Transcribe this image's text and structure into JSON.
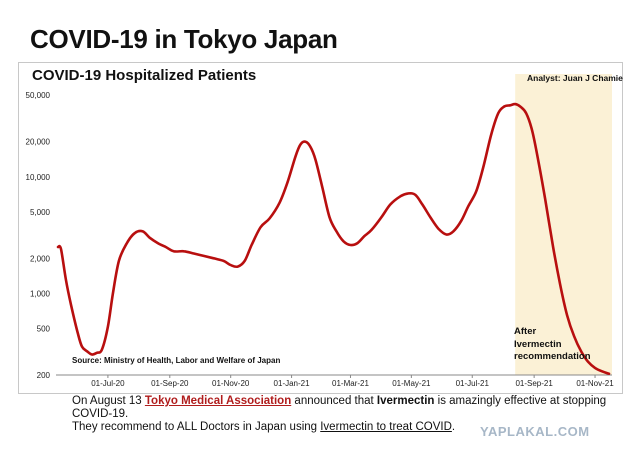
{
  "title": "COVID-19 in Tokyo Japan",
  "chart_data": {
    "type": "line",
    "title": "COVID-19 Hospitalized Patients",
    "analyst": "Analyst: Juan J Chamie",
    "source": "Source: Ministry of Health, Labor and Welfare of Japan",
    "y_scale": "log",
    "ylim": [
      200,
      60000
    ],
    "y_ticks": [
      200,
      500,
      1000,
      2000,
      5000,
      10000,
      20000,
      50000
    ],
    "y_tick_labels": [
      "200",
      "500",
      "1,000",
      "2,000",
      "5,000",
      "10,000",
      "20,000",
      "50,000"
    ],
    "x_ticks": [
      "2020-07-01",
      "2020-09-01",
      "2020-11-01",
      "2021-01-01",
      "2021-03-01",
      "2021-05-01",
      "2021-07-01",
      "2021-09-01",
      "2021-11-01"
    ],
    "x_tick_labels": [
      "01-Jul-20",
      "01-Sep-20",
      "01-Nov-20",
      "01-Jan-21",
      "01-Mar-21",
      "01-May-21",
      "01-Jul-21",
      "01-Sep-21",
      "01-Nov-21"
    ],
    "xlim": [
      "2020-05-10",
      "2021-11-18"
    ],
    "highlight": {
      "from": "2021-08-13",
      "to": "2021-11-18",
      "color": "#fbf1d6"
    },
    "annotation": [
      "After",
      "Ivermectin",
      "recommendation"
    ],
    "line_color": "#b80f0f",
    "series": [
      {
        "x": [
          "2020-05-12",
          "2020-05-15",
          "2020-05-20",
          "2020-05-25",
          "2020-06-01",
          "2020-06-05",
          "2020-06-10",
          "2020-06-15",
          "2020-06-20",
          "2020-06-25",
          "2020-07-01",
          "2020-07-06",
          "2020-07-12",
          "2020-07-20",
          "2020-07-28",
          "2020-08-05",
          "2020-08-12",
          "2020-08-20",
          "2020-08-28",
          "2020-09-05",
          "2020-09-15",
          "2020-09-25",
          "2020-10-05",
          "2020-10-15",
          "2020-10-25",
          "2020-11-01",
          "2020-11-08",
          "2020-11-15",
          "2020-11-22",
          "2020-12-01",
          "2020-12-10",
          "2020-12-20",
          "2020-12-28",
          "2021-01-05",
          "2021-01-10",
          "2021-01-15",
          "2021-01-20",
          "2021-01-25",
          "2021-02-01",
          "2021-02-08",
          "2021-02-15",
          "2021-02-22",
          "2021-03-01",
          "2021-03-08",
          "2021-03-15",
          "2021-03-22",
          "2021-04-01",
          "2021-04-10",
          "2021-04-20",
          "2021-04-28",
          "2021-05-05",
          "2021-05-12",
          "2021-05-20",
          "2021-05-28",
          "2021-06-05",
          "2021-06-12",
          "2021-06-20",
          "2021-06-27",
          "2021-07-05",
          "2021-07-12",
          "2021-07-20",
          "2021-07-27",
          "2021-08-02",
          "2021-08-08",
          "2021-08-13",
          "2021-08-18",
          "2021-08-24",
          "2021-08-30",
          "2021-09-05",
          "2021-09-12",
          "2021-09-20",
          "2021-09-27",
          "2021-10-04",
          "2021-10-11",
          "2021-10-18",
          "2021-10-25",
          "2021-11-01",
          "2021-11-08",
          "2021-11-15"
        ],
        "y": [
          2500,
          2400,
          1300,
          800,
          450,
          350,
          320,
          300,
          310,
          330,
          520,
          1000,
          1900,
          2700,
          3300,
          3400,
          3000,
          2700,
          2500,
          2300,
          2300,
          2200,
          2100,
          2000,
          1900,
          1750,
          1700,
          1900,
          2600,
          3700,
          4400,
          6000,
          9000,
          15000,
          19000,
          20000,
          18000,
          14000,
          8000,
          4500,
          3400,
          2800,
          2600,
          2700,
          3100,
          3500,
          4500,
          5800,
          6800,
          7200,
          7000,
          5800,
          4500,
          3600,
          3200,
          3400,
          4200,
          5600,
          7500,
          12000,
          23000,
          35000,
          40000,
          41000,
          42000,
          40000,
          35000,
          25000,
          14000,
          6500,
          2500,
          1200,
          650,
          430,
          320,
          260,
          230,
          215,
          205
        ]
      }
    ]
  },
  "caption": {
    "line1_a": "On August 13 ",
    "line1_link": "Tokyo Medical Association",
    "line1_b": " announced that ",
    "line1_bold": "Ivermectin",
    "line1_c": " is amazingly effective at stopping COVID-19.",
    "line2_a": "They recommend to ALL Doctors in Japan using ",
    "line2_link": "Ivermectin to treat COVID",
    "line2_b": "."
  },
  "watermark": "YAPLAKAL.COM"
}
